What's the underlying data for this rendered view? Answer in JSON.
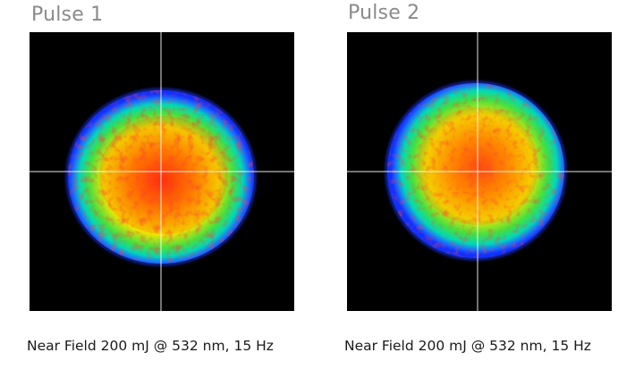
{
  "colors": {
    "title": "#8a8a8a",
    "caption": "#1a1a1a",
    "frame_background": "#000000",
    "crosshair": "#ffffff",
    "beam_edge": "#1030ff",
    "beam_mid": "#00d8b8",
    "beam_green": "#40e040",
    "beam_yellow": "#f2e600",
    "beam_orange": "#ff8c00",
    "beam_hot": "#ff1010"
  },
  "panels": [
    {
      "title": "Pulse 1",
      "caption": "Near Field 200 mJ @ 532 nm, 15 Hz",
      "image_icon": "laser-beam-profile-icon"
    },
    {
      "title": "Pulse 2",
      "caption": "Near Field 200 mJ @ 532 nm, 15 Hz",
      "image_icon": "laser-beam-profile-icon"
    }
  ]
}
